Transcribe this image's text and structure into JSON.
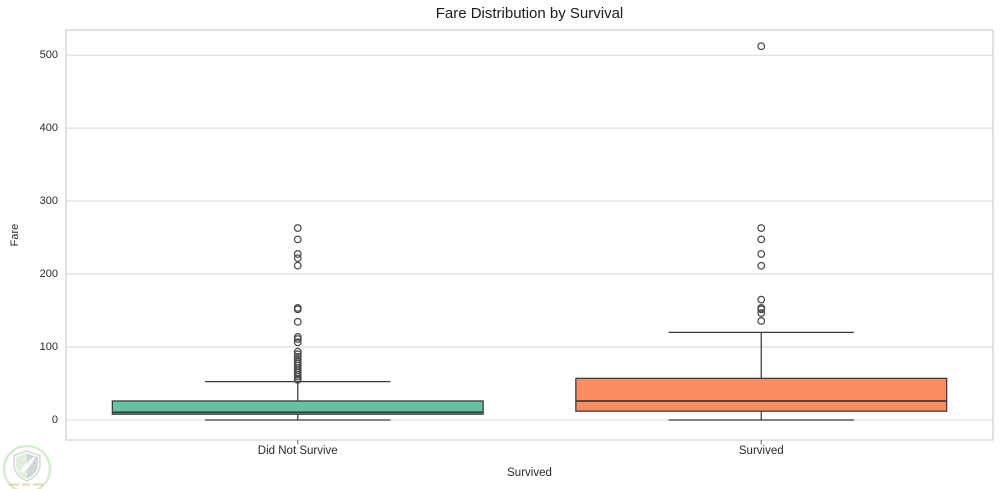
{
  "chart_data": {
    "type": "box",
    "title": "Fare Distribution by Survival",
    "xlabel": "Survived",
    "ylabel": "Fare",
    "categories": [
      "Did Not Survive",
      "Survived"
    ],
    "yticks": [
      0,
      100,
      200,
      300,
      400,
      500
    ],
    "ylim": [
      -27.5,
      534.5
    ],
    "grid": "horizontal-only",
    "legend": "none",
    "colors": {
      "grid": "#dcdcdc",
      "spine": "#d4d4d4",
      "box_edge": "#3d3d3d",
      "median_line": "#3d3d3d",
      "outlier_edge": "#4a4a4a",
      "tick_mark": "#666666"
    },
    "series": [
      {
        "category": "Did Not Survive",
        "box_color": "#66c2a5",
        "whisker_low": 0,
        "q1": 7.9,
        "median": 10.5,
        "q3": 26.0,
        "whisker_high": 52.5,
        "outliers": [
          263.0,
          247.5,
          227.5,
          221.8,
          211.5,
          153.5,
          151.6,
          134.5,
          113.8,
          110.9,
          106.4,
          93.5,
          90.0,
          86.5,
          83.2,
          80.0,
          77.3,
          74.4,
          71.0,
          68.0,
          65.0,
          62.0,
          59.4,
          56.5,
          55.0
        ]
      },
      {
        "category": "Survived",
        "box_color": "#fc8d62",
        "whisker_low": 0,
        "q1": 12.0,
        "median": 26.0,
        "q3": 57.0,
        "whisker_high": 120.0,
        "outliers": [
          512.3,
          263.0,
          247.5,
          227.5,
          211.3,
          164.9,
          153.5,
          151.6,
          146.5,
          135.6
        ]
      }
    ]
  },
  "watermark": {
    "icon": "green-shield-leaf-logo"
  }
}
